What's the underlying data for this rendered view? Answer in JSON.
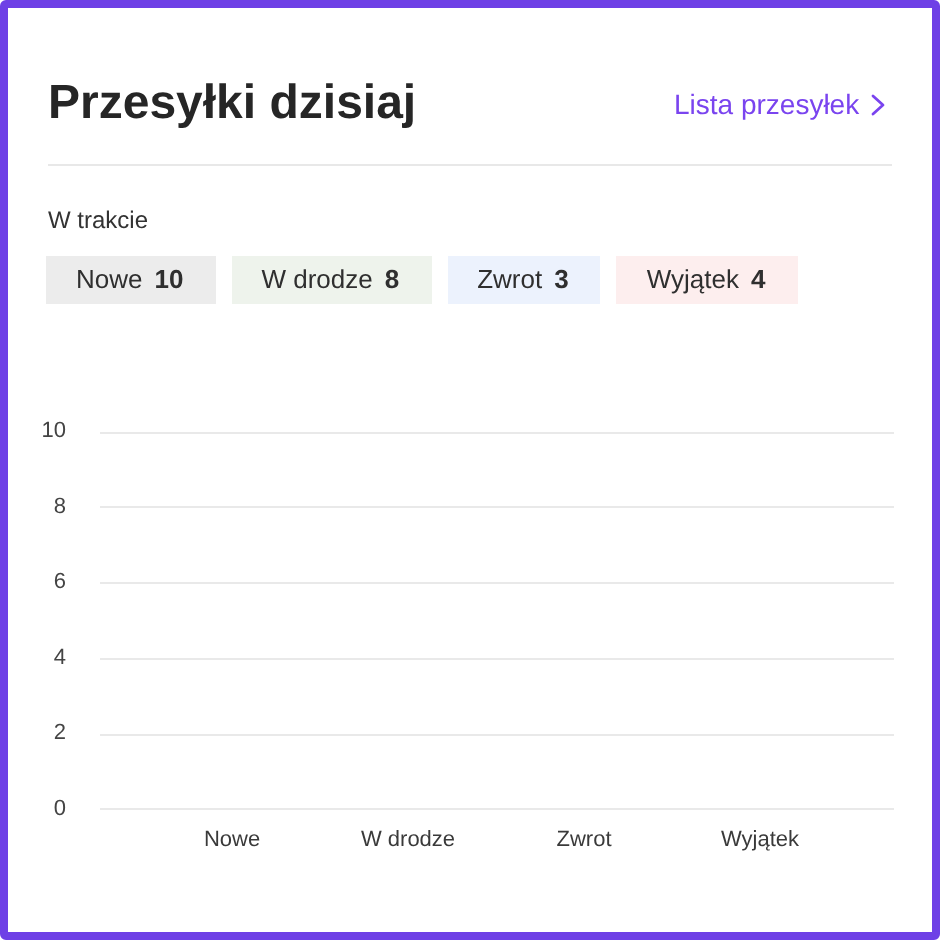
{
  "chart_data": {
    "type": "bar",
    "title": "Przesyłki dzisiaj",
    "annotations": [
      "Lista przesyłek",
      "W trakcie",
      "Nowe 10",
      "W drodze 8",
      "Zwrot 3",
      "Wyjątek 4"
    ],
    "categories": [
      "Nowe",
      "W drodze",
      "Zwrot",
      "Wyjątek"
    ],
    "values": [
      null,
      null,
      null,
      null
    ],
    "ylim": [
      0,
      10
    ],
    "yticks": [
      0,
      2,
      4,
      6,
      8,
      10
    ],
    "grid": "y"
  }
}
